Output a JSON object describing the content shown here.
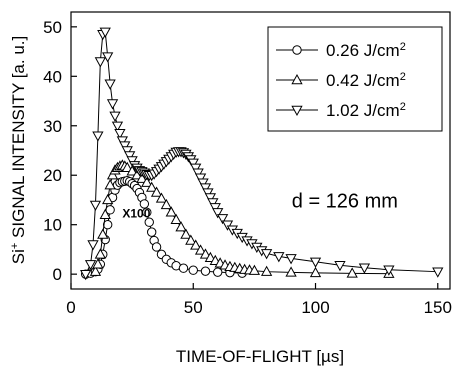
{
  "chart_data": {
    "type": "line",
    "xlabel": "TIME-OF-FLIGHT [µs]",
    "ylabel_prefix": "Si",
    "ylabel_superscript": "+",
    "ylabel_rest": " SIGNAL INTENSITY [a. u.]",
    "xlim": [
      0,
      155
    ],
    "ylim": [
      -3,
      53
    ],
    "xticks": [
      0,
      50,
      100,
      150
    ],
    "yticks": [
      0,
      10,
      20,
      30,
      40,
      50
    ],
    "grid": false,
    "legend_position": "top-right",
    "annotations": [
      {
        "id": "distance",
        "text": "d = 126 mm",
        "x": 112,
        "y": 13.5
      },
      {
        "id": "scale",
        "text": "X100",
        "x": 21,
        "y": 11.5
      }
    ],
    "series": [
      {
        "name": "0.26 J/cm²",
        "label_main": "0.26 J/cm",
        "label_sup": "2",
        "marker": "circle",
        "x": [
          6,
          8,
          10,
          11,
          12,
          13,
          14,
          15,
          16,
          17,
          18,
          19,
          20,
          21,
          22,
          23,
          24,
          25,
          26,
          27,
          28,
          29,
          30,
          31,
          32,
          33,
          34,
          35,
          37,
          39,
          41,
          43,
          46,
          50,
          55,
          60,
          65,
          70
        ],
        "y": [
          0,
          0.2,
          0.5,
          1,
          2,
          4,
          7,
          10,
          13,
          15.5,
          17,
          18,
          18.5,
          18.7,
          18.8,
          18.9,
          18.7,
          18.3,
          17.9,
          17.3,
          16.5,
          15.5,
          14.2,
          12.5,
          10.5,
          8.5,
          6.8,
          5.5,
          4,
          3,
          2.3,
          1.7,
          1.2,
          0.8,
          0.6,
          0.4,
          0.3,
          0.2
        ]
      },
      {
        "name": "0.42 J/cm²",
        "label_main": "0.42 J/cm",
        "label_sup": "2",
        "marker": "triangle-up",
        "x": [
          10,
          11,
          12,
          13,
          14,
          15,
          16,
          17,
          18,
          19,
          20,
          21,
          22,
          23,
          25,
          27,
          29,
          31,
          33,
          35,
          37,
          39,
          41,
          43,
          45,
          47,
          49,
          51,
          53,
          55,
          57,
          59,
          61,
          63,
          65,
          67,
          69,
          71,
          73,
          75,
          80,
          90,
          100,
          115,
          130
        ],
        "y": [
          0.5,
          2,
          4,
          8,
          12,
          15,
          18,
          20,
          21,
          21.5,
          21.8,
          22,
          21.8,
          21.5,
          20.8,
          20,
          19.3,
          18.5,
          17.5,
          16.5,
          15.3,
          14,
          12.5,
          11,
          9.5,
          8,
          6.8,
          5.8,
          4.8,
          4,
          3.3,
          2.7,
          2.2,
          1.8,
          1.5,
          1.3,
          1.1,
          0.9,
          0.8,
          0.7,
          0.5,
          0.35,
          0.25,
          0.15,
          0.1
        ]
      },
      {
        "name": "1.02 J/cm²",
        "label_main": "1.02 J/cm",
        "label_sup": "2",
        "marker": "triangle-down",
        "x": [
          6,
          8,
          9,
          10,
          11,
          12,
          13,
          14,
          15,
          16,
          17,
          18,
          19,
          20,
          21,
          22,
          23,
          24,
          25,
          26,
          27,
          28,
          29,
          30,
          31,
          32,
          33,
          34,
          35,
          36,
          37,
          38,
          39,
          40,
          41,
          42,
          43,
          44,
          45,
          46,
          47,
          48,
          49,
          50,
          51,
          52,
          53,
          54,
          55,
          56,
          57,
          58,
          59,
          60,
          62,
          64,
          66,
          68,
          70,
          72,
          74,
          76,
          78,
          80,
          85,
          90,
          100,
          110,
          120,
          130,
          150
        ],
        "y": [
          0,
          2,
          6,
          14,
          28,
          43,
          48.5,
          49,
          44,
          38.5,
          34.5,
          32,
          30,
          28.5,
          27,
          26,
          25,
          24,
          23,
          22,
          21.5,
          21,
          20.8,
          20.5,
          20.2,
          20,
          20,
          20.3,
          20.8,
          21.3,
          21.8,
          22.3,
          22.8,
          23.3,
          23.8,
          24.3,
          24.7,
          24.8,
          24.8,
          24.6,
          24.3,
          23.8,
          23.2,
          22.5,
          21.5,
          20.5,
          19.5,
          18.5,
          17.5,
          16.5,
          15.5,
          14.5,
          13.5,
          12.5,
          11.3,
          10,
          9,
          8.3,
          7.5,
          6.8,
          6.2,
          5.5,
          4.8,
          4.2,
          3.6,
          3.2,
          2.5,
          1.8,
          1.3,
          0.9,
          0.5
        ]
      }
    ]
  }
}
